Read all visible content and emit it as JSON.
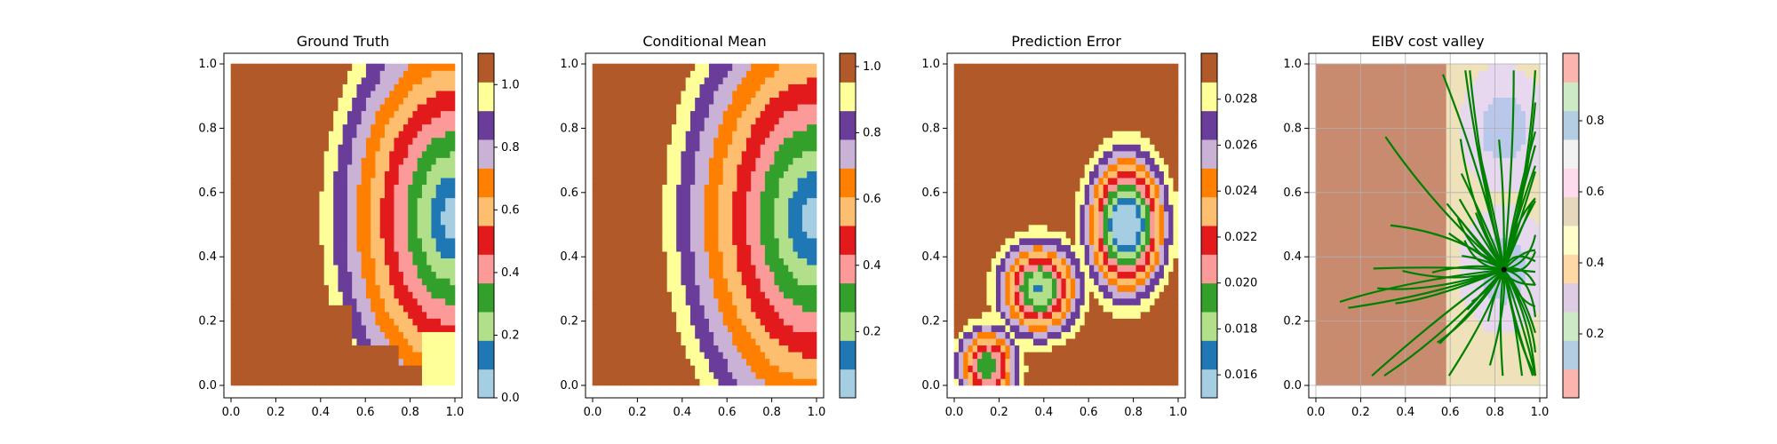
{
  "chart_data": [
    {
      "type": "heatmap",
      "title": "Ground Truth",
      "xlim": [
        0,
        1
      ],
      "ylim": [
        0,
        1
      ],
      "xticks": [
        "0.0",
        "0.2",
        "0.4",
        "0.6",
        "0.8",
        "1.0"
      ],
      "yticks": [
        "0.0",
        "0.2",
        "0.4",
        "0.6",
        "0.8",
        "1.0"
      ],
      "colorbar": {
        "range": [
          0,
          1.1
        ],
        "ticks": [
          "0.0",
          "0.2",
          "0.4",
          "0.6",
          "0.8",
          "1.0"
        ],
        "levels": 12
      },
      "field": {
        "kind": "truth",
        "center": [
          1.0,
          0.52
        ],
        "regions": "yellow plateau near 1.0, brown low region bottom and bottom-right, concentric bands decreasing toward (1.0, 0.52)"
      }
    },
    {
      "type": "heatmap",
      "title": "Conditional Mean",
      "xlim": [
        0,
        1
      ],
      "ylim": [
        0,
        1
      ],
      "xticks": [
        "0.0",
        "0.2",
        "0.4",
        "0.6",
        "0.8",
        "1.0"
      ],
      "yticks": [
        "0.0",
        "0.2",
        "0.4",
        "0.6",
        "0.8",
        "1.0"
      ],
      "colorbar": {
        "range": [
          0,
          1.04
        ],
        "ticks": [
          "0.2",
          "0.4",
          "0.6",
          "0.8",
          "1.0"
        ],
        "levels": 12
      },
      "field": {
        "kind": "mean",
        "center": [
          1.0,
          0.52
        ]
      }
    },
    {
      "type": "heatmap",
      "title": "Prediction Error",
      "xlim": [
        0,
        1
      ],
      "ylim": [
        0,
        1
      ],
      "xticks": [
        "0.0",
        "0.2",
        "0.4",
        "0.6",
        "0.8",
        "1.0"
      ],
      "yticks": [
        "0.0",
        "0.2",
        "0.4",
        "0.6",
        "0.8",
        "1.0"
      ],
      "colorbar": {
        "range": [
          0.015,
          0.03
        ],
        "ticks": [
          "0.016",
          "0.018",
          "0.020",
          "0.022",
          "0.024",
          "0.026",
          "0.028"
        ],
        "levels": 12
      },
      "field": {
        "kind": "error",
        "low_spots": [
          [
            0.77,
            0.48
          ],
          [
            0.38,
            0.31
          ],
          [
            0.14,
            0.06
          ]
        ]
      }
    },
    {
      "type": "heatmap",
      "title": "EIBV cost valley",
      "xlim": [
        0,
        1
      ],
      "ylim": [
        0,
        1
      ],
      "xticks": [
        "0.0",
        "0.2",
        "0.4",
        "0.6",
        "0.8",
        "1.0"
      ],
      "yticks": [
        "0.0",
        "0.2",
        "0.4",
        "0.6",
        "0.8",
        "1.0"
      ],
      "grid": true,
      "colorbar": {
        "range": [
          0.02,
          0.99
        ],
        "ticks": [
          "0.2",
          "0.4",
          "0.6",
          "0.8"
        ],
        "levels": 12
      },
      "field": {
        "kind": "cost"
      },
      "tree": {
        "root": [
          0.84,
          0.36
        ],
        "color": "#008000",
        "node": [
          0.84,
          0.36
        ]
      }
    }
  ],
  "colors": {
    "paired12": [
      "#a6cee3",
      "#1f78b4",
      "#b2df8a",
      "#33a02c",
      "#fb9a99",
      "#e31a1c",
      "#fdbf6f",
      "#ff7f00",
      "#cab2d6",
      "#6a3d9a",
      "#ffff99",
      "#b15928"
    ],
    "pastel_cbar": [
      "#fbb4ae",
      "#b3cde3",
      "#ccebc5",
      "#decbe4",
      "#fed9a6",
      "#ffffcc",
      "#e5d8bd",
      "#fddaec",
      "#f2f2f2",
      "#b3cde3",
      "#ccebc5",
      "#fbb4ae"
    ]
  }
}
